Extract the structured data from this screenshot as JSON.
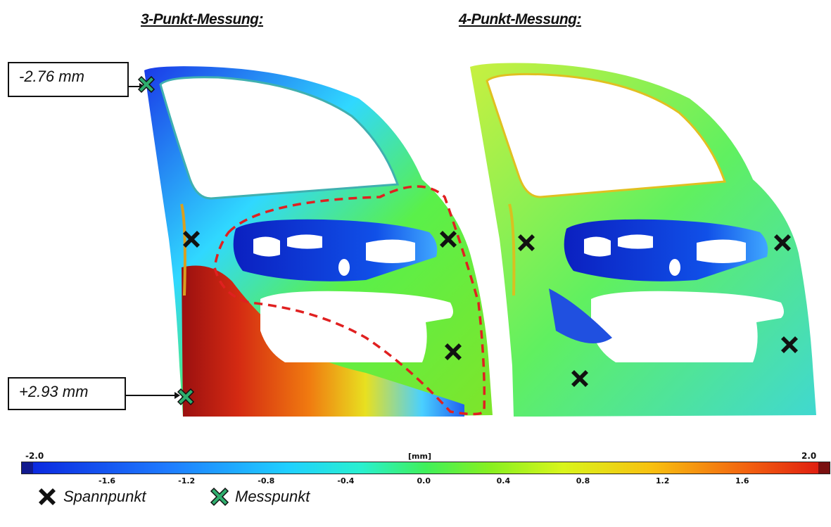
{
  "titles": {
    "left": "3-Punkt-Messung:",
    "right": "4-Punkt-Messung:"
  },
  "callouts": {
    "top": "-2.76 mm",
    "bottom": "+2.93 mm"
  },
  "color_scale": {
    "min": "-2.0",
    "max": "2.0",
    "unit": "[mm]",
    "ticks": [
      "-1.6",
      "-1.2",
      "-0.8",
      "-0.4",
      "0.0",
      "0.4",
      "0.8",
      "1.2",
      "1.6"
    ],
    "colors": {
      "low": "#0b2ae0",
      "zero": "#3ff05a",
      "high": "#e01f10"
    }
  },
  "legend": {
    "spannpunkt": "Spannpunkt",
    "messpunkt": "Messpunkt",
    "spannpunkt_color": "#111111",
    "messpunkt_color": "#2fae6e"
  },
  "highlight_color": "#e02020"
}
